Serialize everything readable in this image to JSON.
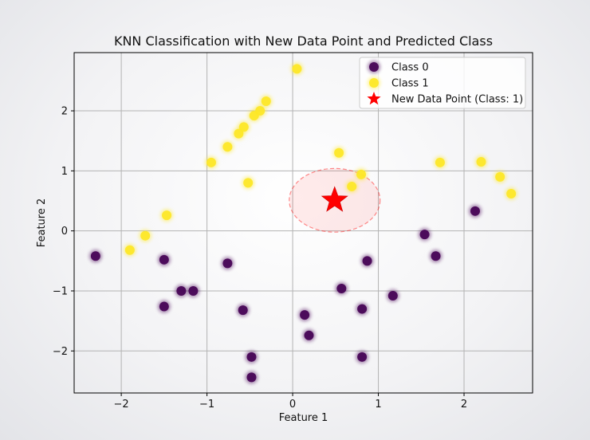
{
  "chart_data": {
    "type": "scatter",
    "title": "KNN Classification with New Data Point and Predicted Class",
    "xlabel": "Feature 1",
    "ylabel": "Feature 2",
    "xlim": [
      -2.55,
      2.8
    ],
    "ylim": [
      -2.7,
      2.97
    ],
    "xticks": [
      -2,
      -1,
      0,
      1,
      2
    ],
    "yticks": [
      -2,
      -1,
      0,
      1,
      2
    ],
    "xtick_labels": [
      "−2",
      "−1",
      "0",
      "1",
      "2"
    ],
    "ytick_labels": [
      "−2",
      "−1",
      "0",
      "1",
      "2"
    ],
    "grid": true,
    "legend_position": "top-right",
    "series": [
      {
        "name": "Class 0",
        "color": "#440154",
        "marker": "circle",
        "points": [
          [
            -2.3,
            -0.42
          ],
          [
            -1.5,
            -0.48
          ],
          [
            -1.3,
            -1.0
          ],
          [
            -1.16,
            -1.0
          ],
          [
            -1.5,
            -1.26
          ],
          [
            -0.76,
            -0.54
          ],
          [
            -0.58,
            -1.32
          ],
          [
            -0.48,
            -2.1
          ],
          [
            -0.48,
            -2.44
          ],
          [
            0.14,
            -1.4
          ],
          [
            0.19,
            -1.74
          ],
          [
            0.57,
            -0.96
          ],
          [
            0.81,
            -1.3
          ],
          [
            0.81,
            -2.1
          ],
          [
            0.87,
            -0.5
          ],
          [
            1.17,
            -1.08
          ],
          [
            1.54,
            -0.06
          ],
          [
            1.67,
            -0.42
          ],
          [
            2.13,
            0.33
          ]
        ]
      },
      {
        "name": "Class 1",
        "color": "#fde725",
        "marker": "circle",
        "points": [
          [
            -1.9,
            -0.32
          ],
          [
            -1.72,
            -0.08
          ],
          [
            -1.47,
            0.26
          ],
          [
            -0.95,
            1.14
          ],
          [
            -0.76,
            1.4
          ],
          [
            -0.63,
            1.62
          ],
          [
            -0.57,
            1.73
          ],
          [
            -0.52,
            0.8
          ],
          [
            -0.45,
            1.92
          ],
          [
            -0.38,
            2.0
          ],
          [
            -0.31,
            2.16
          ],
          [
            0.05,
            2.7
          ],
          [
            0.54,
            1.3
          ],
          [
            0.69,
            0.74
          ],
          [
            0.8,
            0.94
          ],
          [
            1.72,
            1.14
          ],
          [
            2.2,
            1.15
          ],
          [
            2.42,
            0.9
          ],
          [
            2.55,
            0.62
          ]
        ]
      },
      {
        "name": "New Data Point (Class: 1)",
        "color": "#ff0000",
        "marker": "star",
        "points": [
          [
            0.49,
            0.51
          ]
        ]
      }
    ],
    "neighborhood": {
      "center": [
        0.49,
        0.51
      ],
      "radius": 0.53,
      "color": "#ff0000"
    }
  }
}
